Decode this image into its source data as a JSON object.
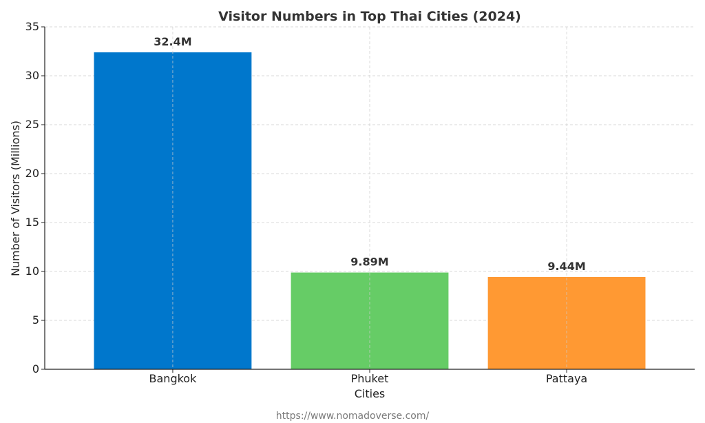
{
  "chart_data": {
    "type": "bar",
    "title": "Visitor Numbers in Top Thai Cities (2024)",
    "xlabel": "Cities",
    "ylabel": "Number of Visitors (Millions)",
    "categories": [
      "Bangkok",
      "Phuket",
      "Pattaya"
    ],
    "values": [
      32.4,
      9.89,
      9.44
    ],
    "data_labels": [
      "32.4M",
      "9.89M",
      "9.44M"
    ],
    "colors": [
      "#0077cc",
      "#66cc66",
      "#ff9933"
    ],
    "ylim": [
      0,
      35
    ],
    "yticks": [
      0,
      5,
      10,
      15,
      20,
      25,
      30,
      35
    ],
    "grid": true,
    "legend": "none"
  },
  "source_text": "https://www.nomadoverse.com/"
}
